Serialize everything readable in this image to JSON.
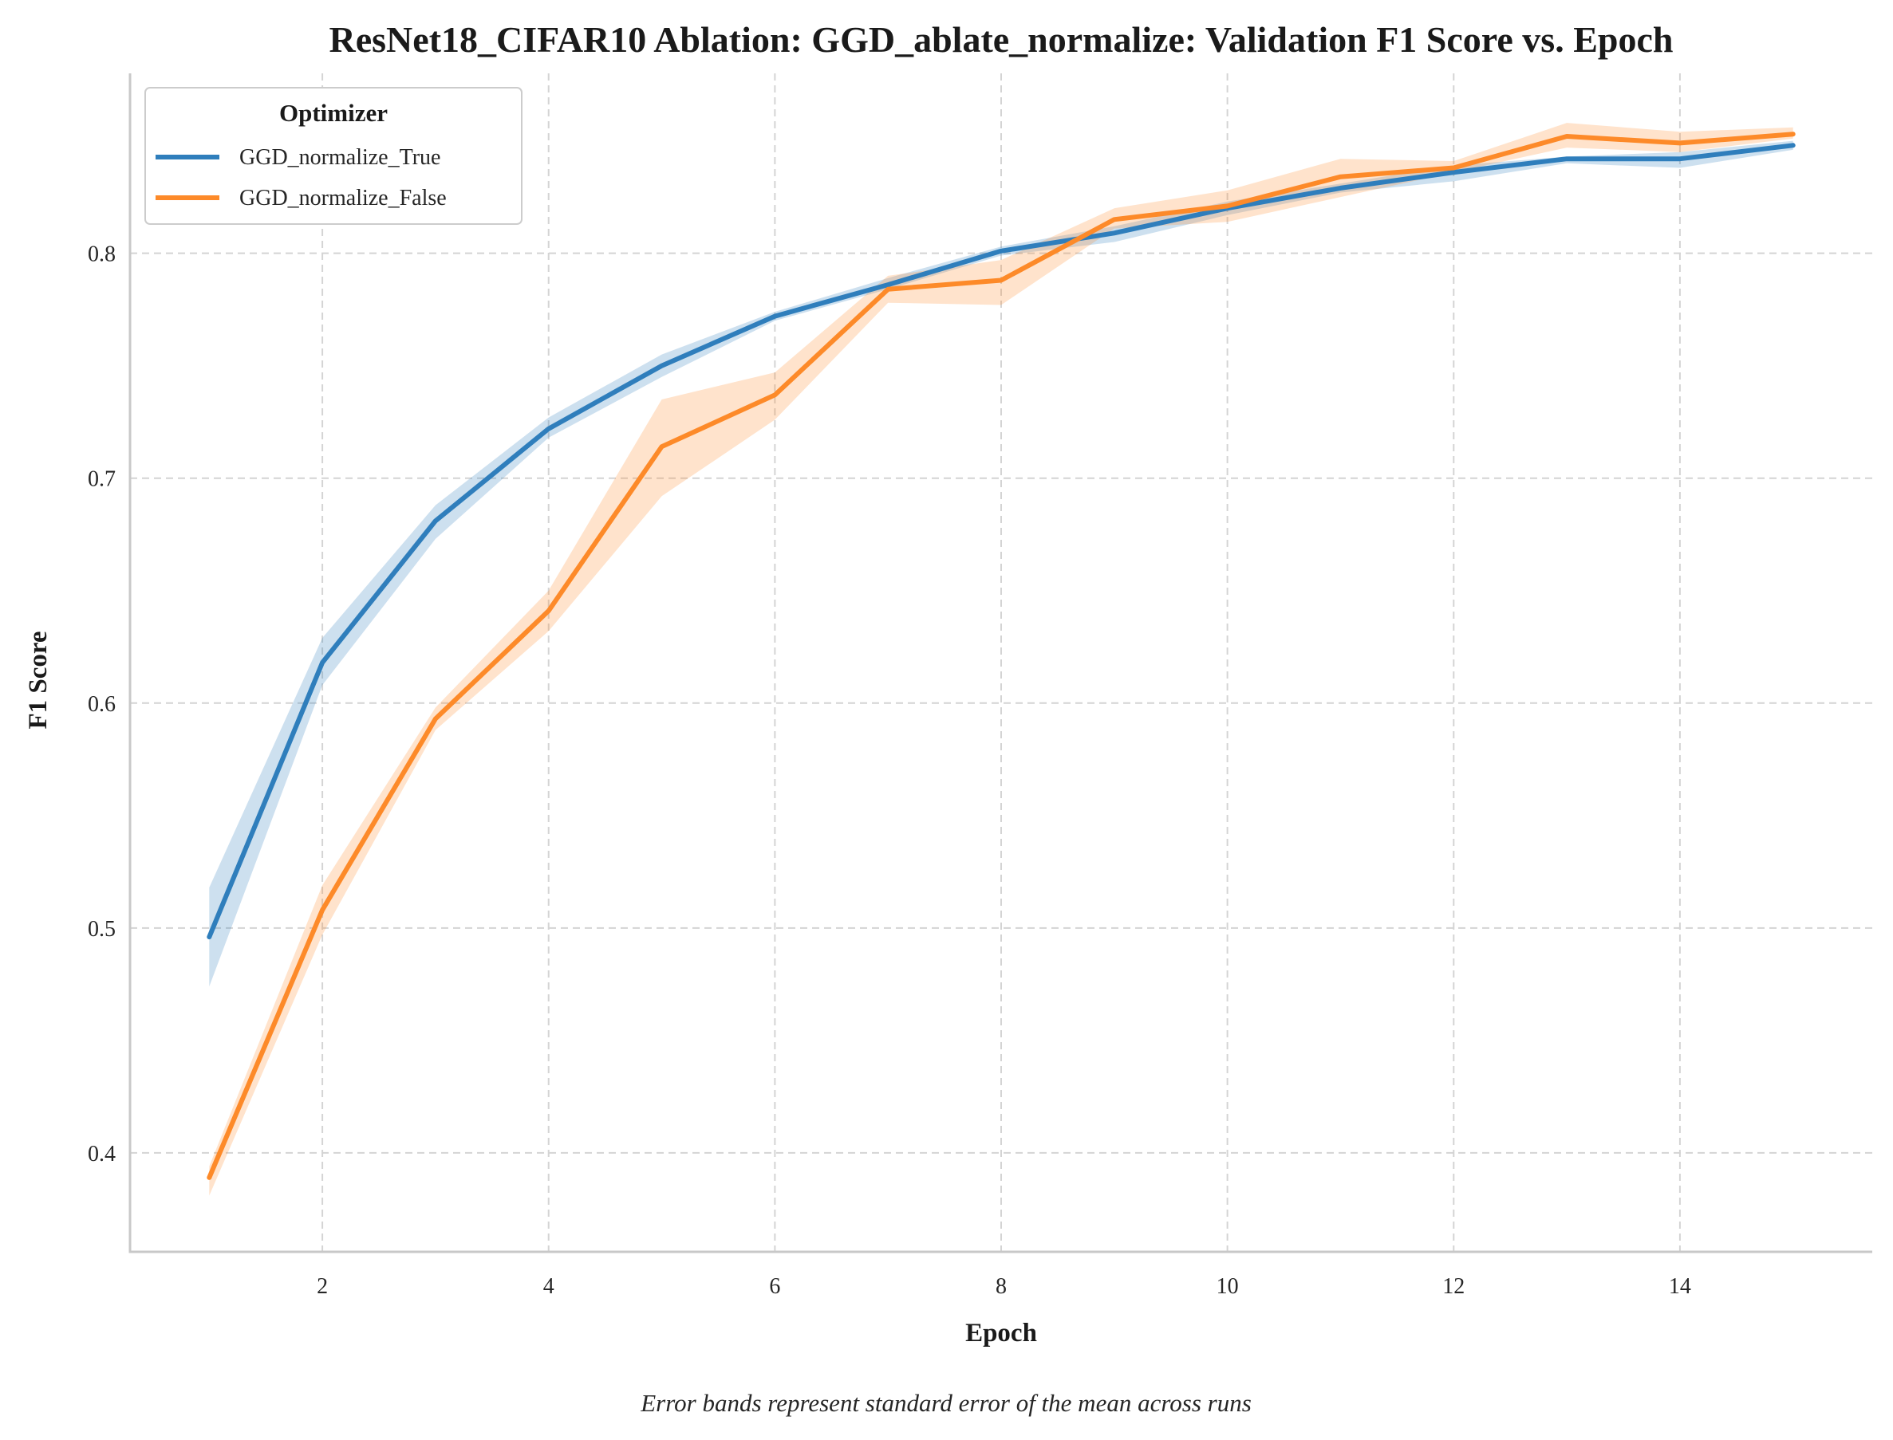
{
  "chart_data": {
    "type": "line",
    "title": "ResNet18_CIFAR10 Ablation: GGD_ablate_normalize: Validation F1 Score vs. Epoch",
    "xlabel": "Epoch",
    "ylabel": "F1 Score",
    "caption": "Error bands represent standard error of the mean across runs",
    "xlim": [
      0.3,
      15.7
    ],
    "ylim": [
      0.356,
      0.88
    ],
    "xticks": [
      2,
      4,
      6,
      8,
      10,
      12,
      14
    ],
    "yticks": [
      0.4,
      0.5,
      0.6,
      0.7,
      0.8
    ],
    "ytick_labels": [
      "0.4",
      "0.5",
      "0.6",
      "0.7",
      "0.8"
    ],
    "grid": true,
    "legend": {
      "title": "Optimizer",
      "placement": "top-left"
    },
    "x": [
      1,
      2,
      3,
      4,
      5,
      6,
      7,
      8,
      9,
      10,
      11,
      12,
      13,
      14,
      15
    ],
    "series": [
      {
        "name": "GGD_normalize_True",
        "color": "#2f7ebc",
        "values": [
          0.496,
          0.618,
          0.681,
          0.722,
          0.75,
          0.772,
          0.786,
          0.801,
          0.809,
          0.82,
          0.829,
          0.836,
          0.842,
          0.842,
          0.848
        ],
        "lower": [
          0.474,
          0.608,
          0.673,
          0.718,
          0.745,
          0.77,
          0.784,
          0.799,
          0.805,
          0.817,
          0.827,
          0.832,
          0.84,
          0.838,
          0.846
        ],
        "upper": [
          0.518,
          0.629,
          0.688,
          0.727,
          0.755,
          0.774,
          0.789,
          0.803,
          0.812,
          0.823,
          0.831,
          0.839,
          0.843,
          0.845,
          0.85
        ]
      },
      {
        "name": "GGD_normalize_False",
        "color": "#fd8a29",
        "values": [
          0.389,
          0.508,
          0.593,
          0.641,
          0.714,
          0.737,
          0.784,
          0.788,
          0.815,
          0.821,
          0.834,
          0.838,
          0.852,
          0.849,
          0.853
        ],
        "lower": [
          0.381,
          0.497,
          0.588,
          0.632,
          0.692,
          0.726,
          0.778,
          0.777,
          0.811,
          0.814,
          0.825,
          0.836,
          0.847,
          0.845,
          0.851
        ],
        "upper": [
          0.394,
          0.519,
          0.598,
          0.65,
          0.735,
          0.747,
          0.79,
          0.797,
          0.82,
          0.828,
          0.842,
          0.841,
          0.858,
          0.854,
          0.856
        ]
      }
    ]
  }
}
